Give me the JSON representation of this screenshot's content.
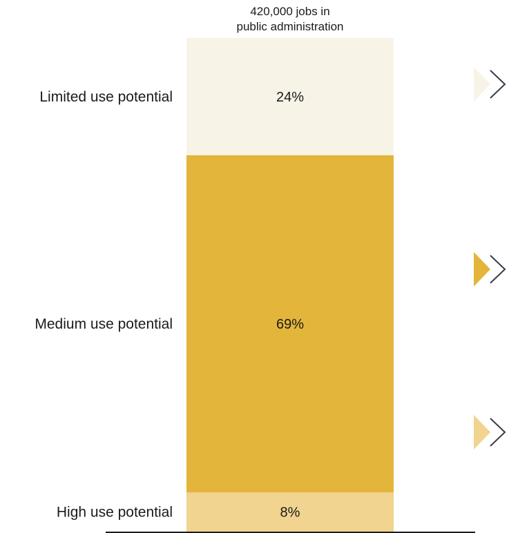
{
  "chart_data": {
    "type": "bar",
    "stacked": true,
    "total_label_lines": [
      "420,000 jobs in",
      "public administration"
    ],
    "categories": [
      "Limited use potential",
      "Medium use potential",
      "High use potential"
    ],
    "values": [
      24,
      69,
      8
    ],
    "value_labels": [
      "24%",
      "69%",
      "8%"
    ],
    "colors": [
      "#f7f3e6",
      "#e3b53a",
      "#f0d48f"
    ]
  },
  "icons": [
    {
      "name": "limited-arrow-icon",
      "fill": "#f7f3e6"
    },
    {
      "name": "medium-arrow-icon",
      "fill": "#e3b53a"
    },
    {
      "name": "high-arrow-icon",
      "fill": "#f0d48f"
    }
  ]
}
